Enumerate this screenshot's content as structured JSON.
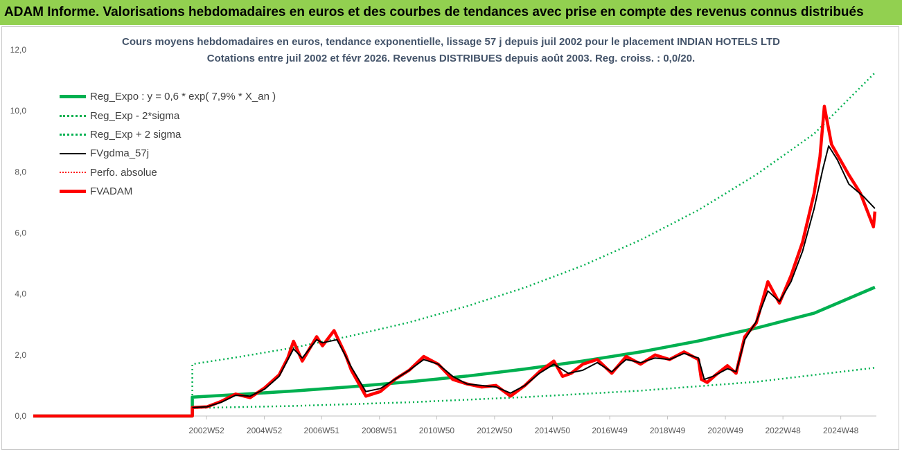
{
  "banner": {
    "title": "ADAM Informe. Valorisations hebdomadaires en euros et des courbes de tendances avec prise en compte des revenus connus distribués"
  },
  "chart_data": {
    "type": "line",
    "title": "Cours moyens hebdomadaires en euros, tendance exponentielle, lissage 57 j depuis juil 2002 pour le placement INDIAN HOTELS LTD",
    "subtitle": "Cotations entre juil 2002 et févr 2026.  Revenus DISTRIBUES depuis août 2003. Reg. croiss. : 0,0/20.",
    "xlabel": "",
    "ylabel": "",
    "ylim": [
      0,
      12
    ],
    "yticks": [
      "0,0",
      "2,0",
      "4,0",
      "6,0",
      "8,0",
      "10,0",
      "12,0"
    ],
    "xlim": [
      1997.0,
      2026.15
    ],
    "x_ticks": [
      {
        "label": "2002W52",
        "x": 2002.99
      },
      {
        "label": "2004W52",
        "x": 2004.99
      },
      {
        "label": "2006W51",
        "x": 2006.97
      },
      {
        "label": "2008W51",
        "x": 2008.97
      },
      {
        "label": "2010W50",
        "x": 2010.95
      },
      {
        "label": "2012W50",
        "x": 2012.95
      },
      {
        "label": "2014W50",
        "x": 2014.95
      },
      {
        "label": "2016W49",
        "x": 2016.93
      },
      {
        "label": "2018W49",
        "x": 2018.93
      },
      {
        "label": "2020W49",
        "x": 2020.93
      },
      {
        "label": "2022W48",
        "x": 2022.92
      },
      {
        "label": "2024W48",
        "x": 2024.92
      }
    ],
    "grid": false,
    "legend_position": "top-left",
    "start_x": 2002.5,
    "series": [
      {
        "name": "Reg_Expo : y = 0,6 * exp( 7,9% *  X_an )",
        "color": "#00b050",
        "style": "solid-thick",
        "points": [
          [
            1997.0,
            0
          ],
          [
            2002.5,
            0
          ],
          [
            2002.5,
            0.62
          ],
          [
            2004,
            0.7
          ],
          [
            2006,
            0.82
          ],
          [
            2008,
            0.96
          ],
          [
            2010,
            1.12
          ],
          [
            2012,
            1.31
          ],
          [
            2014,
            1.54
          ],
          [
            2016,
            1.8
          ],
          [
            2018,
            2.1
          ],
          [
            2020,
            2.46
          ],
          [
            2022,
            2.88
          ],
          [
            2024,
            3.37
          ],
          [
            2026.1,
            4.22
          ]
        ]
      },
      {
        "name": "Reg_Exp - 2*sigma",
        "color": "#00b050",
        "style": "dotted",
        "points": [
          [
            2002.5,
            0
          ],
          [
            2002.5,
            0.26
          ],
          [
            2006,
            0.33
          ],
          [
            2010,
            0.45
          ],
          [
            2014,
            0.62
          ],
          [
            2018,
            0.83
          ],
          [
            2022,
            1.12
          ],
          [
            2026.1,
            1.58
          ]
        ]
      },
      {
        "name": "Reg_Exp + 2 sigma",
        "color": "#00b050",
        "style": "dotted",
        "points": [
          [
            2002.5,
            0
          ],
          [
            2002.5,
            1.7
          ],
          [
            2004,
            1.92
          ],
          [
            2006,
            2.24
          ],
          [
            2008,
            2.63
          ],
          [
            2010,
            3.07
          ],
          [
            2012,
            3.6
          ],
          [
            2014,
            4.21
          ],
          [
            2016,
            4.93
          ],
          [
            2018,
            5.77
          ],
          [
            2020,
            6.75
          ],
          [
            2022,
            7.91
          ],
          [
            2024,
            9.25
          ],
          [
            2026.1,
            11.25
          ]
        ]
      },
      {
        "name": "FVgdma_57j",
        "color": "#000000",
        "style": "solid",
        "points": [
          [
            2002.5,
            0.28
          ],
          [
            2003,
            0.3
          ],
          [
            2003.5,
            0.45
          ],
          [
            2004,
            0.68
          ],
          [
            2004.5,
            0.65
          ],
          [
            2005,
            0.88
          ],
          [
            2005.5,
            1.3
          ],
          [
            2006,
            2.2
          ],
          [
            2006.3,
            1.9
          ],
          [
            2006.8,
            2.5
          ],
          [
            2007,
            2.4
          ],
          [
            2007.5,
            2.5
          ],
          [
            2008,
            1.6
          ],
          [
            2008.5,
            0.8
          ],
          [
            2009,
            0.9
          ],
          [
            2009.5,
            1.2
          ],
          [
            2010,
            1.5
          ],
          [
            2010.5,
            1.85
          ],
          [
            2011,
            1.7
          ],
          [
            2011.5,
            1.3
          ],
          [
            2012,
            1.05
          ],
          [
            2012.5,
            1.0
          ],
          [
            2013,
            0.95
          ],
          [
            2013.5,
            0.75
          ],
          [
            2014,
            1.0
          ],
          [
            2014.5,
            1.4
          ],
          [
            2015,
            1.7
          ],
          [
            2015.5,
            1.4
          ],
          [
            2016,
            1.5
          ],
          [
            2016.5,
            1.75
          ],
          [
            2017,
            1.45
          ],
          [
            2017.5,
            1.85
          ],
          [
            2018,
            1.75
          ],
          [
            2018.5,
            1.9
          ],
          [
            2019,
            1.85
          ],
          [
            2019.5,
            2.05
          ],
          [
            2020,
            1.9
          ],
          [
            2020.2,
            1.2
          ],
          [
            2020.5,
            1.3
          ],
          [
            2021,
            1.55
          ],
          [
            2021.3,
            1.45
          ],
          [
            2021.6,
            2.5
          ],
          [
            2022,
            3.1
          ],
          [
            2022.4,
            4.1
          ],
          [
            2022.8,
            3.75
          ],
          [
            2023.2,
            4.4
          ],
          [
            2023.6,
            5.4
          ],
          [
            2024.0,
            6.8
          ],
          [
            2024.3,
            8.1
          ],
          [
            2024.5,
            8.85
          ],
          [
            2024.8,
            8.4
          ],
          [
            2025.2,
            7.6
          ],
          [
            2025.7,
            7.2
          ],
          [
            2026.1,
            6.8
          ]
        ]
      },
      {
        "name": "Perfo. absolue",
        "color": "#ff0000",
        "style": "dotted-thin",
        "points": [
          [
            1997.0,
            0
          ],
          [
            2002.5,
            0
          ]
        ]
      },
      {
        "name": "FVADAM",
        "color": "#ff0000",
        "style": "solid-thick",
        "points": [
          [
            1997.0,
            0
          ],
          [
            2002.5,
            0
          ],
          [
            2002.5,
            0.28
          ],
          [
            2003,
            0.3
          ],
          [
            2003.5,
            0.48
          ],
          [
            2004,
            0.72
          ],
          [
            2004.5,
            0.6
          ],
          [
            2005,
            0.92
          ],
          [
            2005.5,
            1.35
          ],
          [
            2005.8,
            1.9
          ],
          [
            2006,
            2.45
          ],
          [
            2006.3,
            1.8
          ],
          [
            2006.8,
            2.6
          ],
          [
            2007,
            2.3
          ],
          [
            2007.4,
            2.8
          ],
          [
            2007.8,
            2.0
          ],
          [
            2008,
            1.5
          ],
          [
            2008.5,
            0.65
          ],
          [
            2009,
            0.8
          ],
          [
            2009.5,
            1.2
          ],
          [
            2010,
            1.5
          ],
          [
            2010.5,
            1.95
          ],
          [
            2011,
            1.7
          ],
          [
            2011.5,
            1.2
          ],
          [
            2012,
            1.05
          ],
          [
            2012.5,
            0.95
          ],
          [
            2013,
            1.0
          ],
          [
            2013.5,
            0.65
          ],
          [
            2014,
            1.0
          ],
          [
            2014.5,
            1.45
          ],
          [
            2015,
            1.8
          ],
          [
            2015.3,
            1.3
          ],
          [
            2015.6,
            1.4
          ],
          [
            2016,
            1.7
          ],
          [
            2016.5,
            1.85
          ],
          [
            2017,
            1.4
          ],
          [
            2017.5,
            1.95
          ],
          [
            2018,
            1.7
          ],
          [
            2018.5,
            2.0
          ],
          [
            2019,
            1.85
          ],
          [
            2019.5,
            2.1
          ],
          [
            2020,
            1.85
          ],
          [
            2020.1,
            1.2
          ],
          [
            2020.3,
            1.1
          ],
          [
            2020.6,
            1.35
          ],
          [
            2021,
            1.65
          ],
          [
            2021.3,
            1.4
          ],
          [
            2021.6,
            2.6
          ],
          [
            2022,
            3.05
          ],
          [
            2022.4,
            4.4
          ],
          [
            2022.8,
            3.7
          ],
          [
            2023.2,
            4.6
          ],
          [
            2023.6,
            5.7
          ],
          [
            2024.0,
            7.3
          ],
          [
            2024.2,
            8.5
          ],
          [
            2024.35,
            10.15
          ],
          [
            2024.6,
            8.9
          ],
          [
            2024.9,
            8.4
          ],
          [
            2025.2,
            7.9
          ],
          [
            2025.6,
            7.3
          ],
          [
            2026.05,
            6.2
          ],
          [
            2026.1,
            6.7
          ]
        ]
      }
    ]
  }
}
